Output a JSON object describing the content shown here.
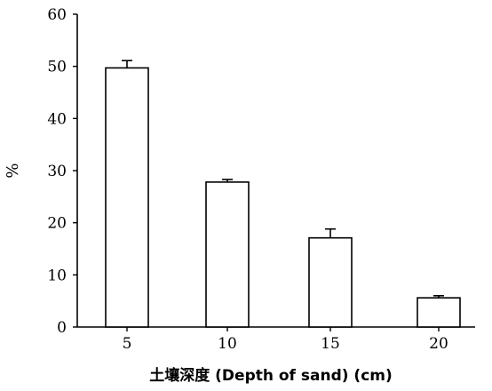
{
  "chart_data": {
    "type": "bar",
    "title": "",
    "categories": [
      "5",
      "10",
      "15",
      "20"
    ],
    "series": [
      {
        "values": [
          49.7,
          27.8,
          17.1,
          5.6
        ],
        "error": [
          1.4,
          0.5,
          1.7,
          0.4
        ]
      }
    ],
    "xlabel": "土壤深度 (Depth of sand) (cm)",
    "ylabel": "%",
    "ylim": [
      0,
      60
    ],
    "yticks": [
      0,
      10,
      20,
      30,
      40,
      50,
      60
    ],
    "grid": false,
    "legend": "none",
    "colors": {
      "bar_fill": "#ffffff",
      "bar_stroke": "#000000",
      "axis": "#000000"
    }
  }
}
